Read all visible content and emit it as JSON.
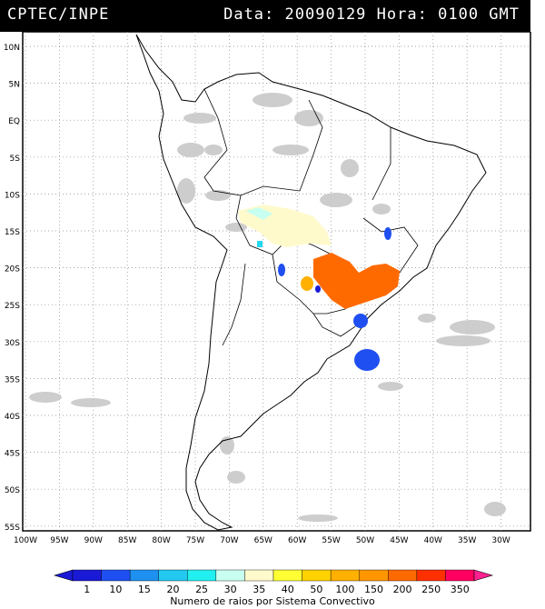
{
  "header": {
    "title": "CPTEC/INPE",
    "date_label": "Data:",
    "date_value": "20090129",
    "hour_label": "Hora:",
    "hour_value": "0100 GMT"
  },
  "map": {
    "lat_labels": [
      "10N",
      "5N",
      "EQ",
      "5S",
      "10S",
      "15S",
      "20S",
      "25S",
      "30S",
      "35S",
      "40S",
      "45S",
      "50S",
      "55S"
    ],
    "lon_labels": [
      "100W",
      "95W",
      "90W",
      "85W",
      "80W",
      "75W",
      "70W",
      "65W",
      "60W",
      "55W",
      "50W",
      "45W",
      "40W",
      "35W",
      "30W"
    ],
    "grid": "dotted"
  },
  "legend": {
    "caption": "Numero de raios por Sistema Convectivo",
    "levels": [
      "1",
      "10",
      "15",
      "20",
      "25",
      "30",
      "35",
      "40",
      "50",
      "100",
      "150",
      "200",
      "250",
      "350"
    ],
    "colors": [
      "#1a1ad6",
      "#1f4ff0",
      "#1e90f0",
      "#22c8f0",
      "#22f0f0",
      "#c8fff0",
      "#fffacc",
      "#ffff33",
      "#ffd200",
      "#ffb000",
      "#ff9600",
      "#ff6a00",
      "#ff3000",
      "#ff0060"
    ]
  }
}
